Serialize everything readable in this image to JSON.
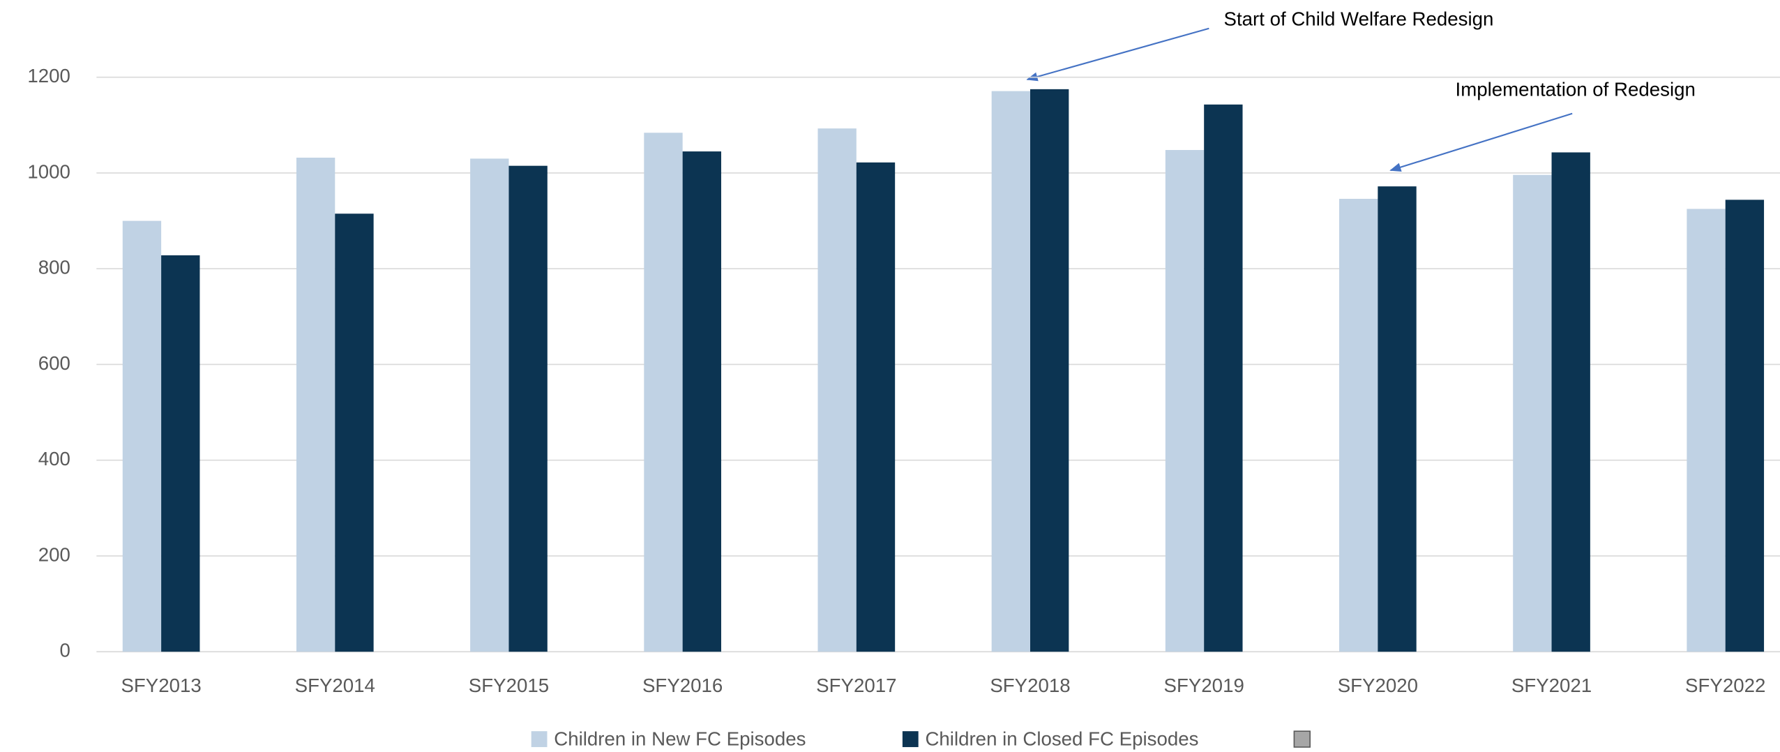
{
  "chart_data": {
    "type": "bar",
    "categories": [
      "SFY2013",
      "SFY2014",
      "SFY2015",
      "SFY2016",
      "SFY2017",
      "SFY2018",
      "SFY2019",
      "SFY2020",
      "SFY2021",
      "SFY2022"
    ],
    "series": [
      {
        "name": "Children in New FC Episodes",
        "color": "#c0d2e4",
        "values": [
          900,
          1032,
          1030,
          1084,
          1093,
          1171,
          1048,
          946,
          996,
          925
        ]
      },
      {
        "name": "Children in Closed FC Episodes",
        "color": "#0c3452",
        "values": [
          828,
          915,
          1015,
          1045,
          1022,
          1175,
          1143,
          972,
          1043,
          944
        ]
      }
    ],
    "ylim": [
      0,
      1200
    ],
    "yticks": [
      0,
      200,
      400,
      600,
      800,
      1000,
      1200
    ],
    "grid": true,
    "annotations": [
      {
        "text": "Start of Child Welfare Redesign"
      },
      {
        "text": "Implementation of Redesign"
      }
    ]
  }
}
